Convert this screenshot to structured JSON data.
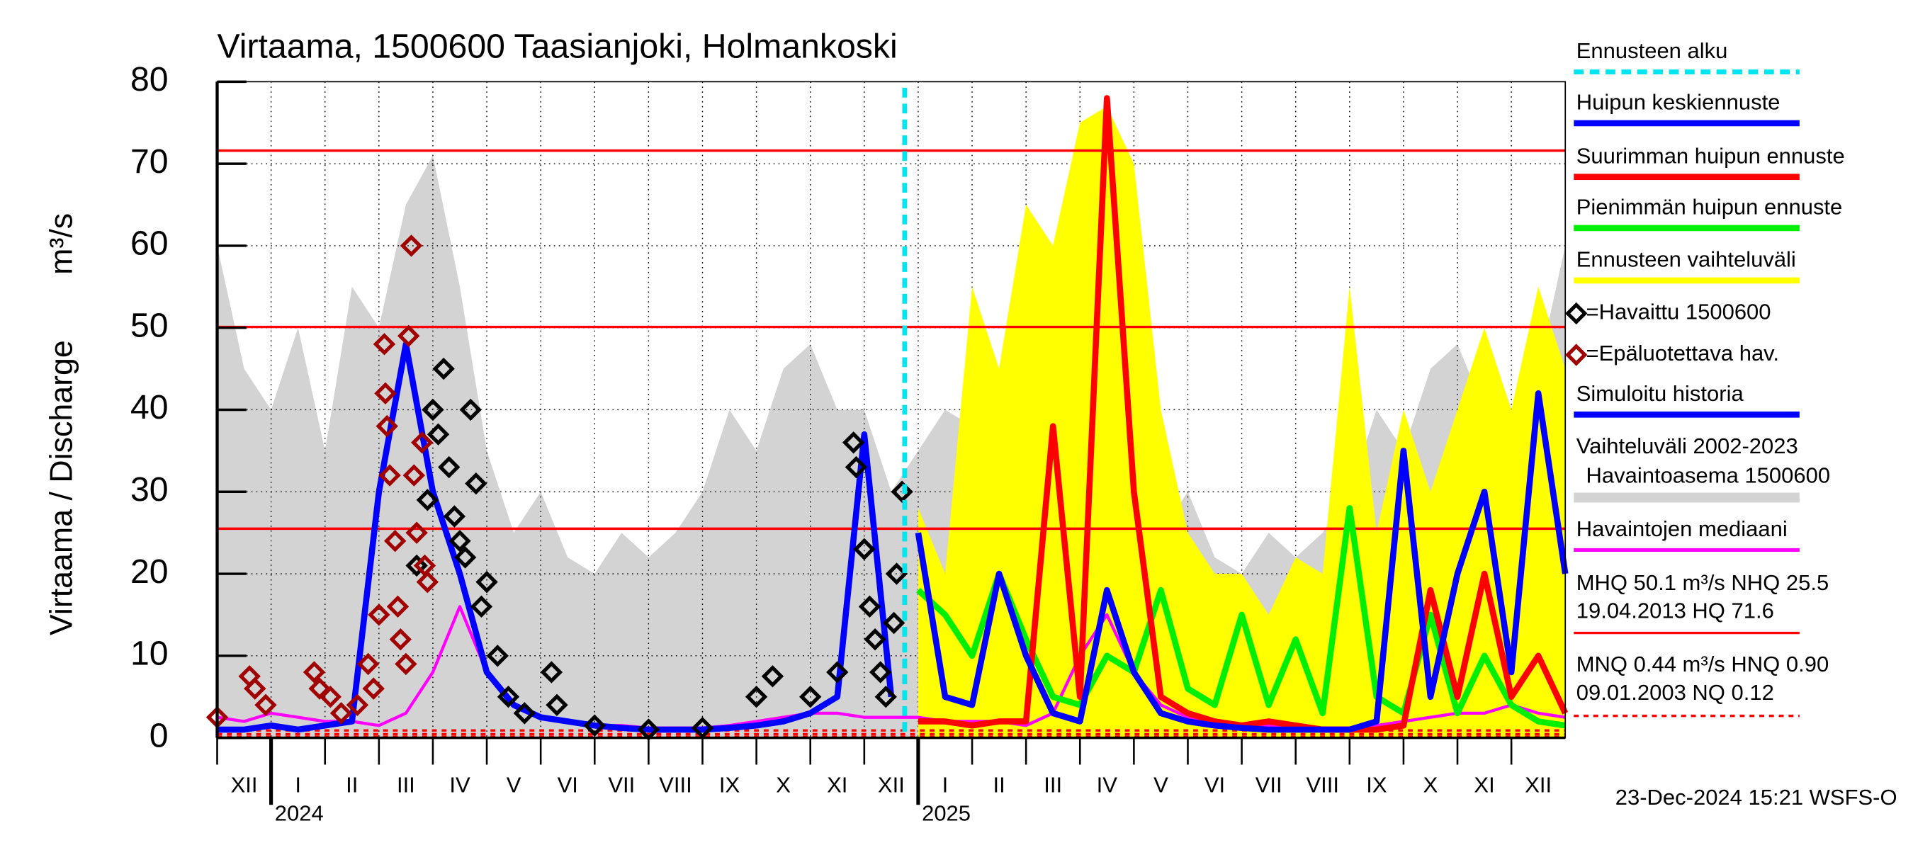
{
  "chart_data": {
    "type": "line",
    "title": "Virtaama, 1500600 Taasianjoki, Holmankoski",
    "ylabel": "Virtaama / Discharge",
    "yunit": "m³/s",
    "footer": "23-Dec-2024 15:21 WSFS-O",
    "ylim": [
      0,
      80
    ],
    "yticks": [
      0,
      10,
      20,
      30,
      40,
      50,
      60,
      70,
      80
    ],
    "xlim": [
      0,
      25
    ],
    "grid": true,
    "month_labels": [
      "XII",
      "I",
      "II",
      "III",
      "IV",
      "V",
      "VI",
      "VII",
      "VIII",
      "IX",
      "X",
      "XI",
      "XII",
      "I",
      "II",
      "III",
      "IV",
      "V",
      "VI",
      "VII",
      "VIII",
      "IX",
      "X",
      "XI",
      "XII"
    ],
    "year_labels": [
      "2024",
      "2025"
    ],
    "forecast_start": 12.75,
    "forecast_start_label": "Ennusteen alku",
    "forecast_start_color": "#00e5ee",
    "x": [
      0,
      0.5,
      1,
      1.5,
      2,
      2.5,
      3,
      3.5,
      4,
      4.5,
      5,
      5.5,
      6,
      6.5,
      7,
      7.5,
      8,
      8.5,
      9,
      9.5,
      10,
      10.5,
      11,
      11.5,
      12,
      12.5,
      13,
      13.5,
      14,
      14.5,
      15,
      15.5,
      16,
      16.5,
      17,
      17.5,
      18,
      18.5,
      19,
      19.5,
      20,
      20.5,
      21,
      21.5,
      22,
      22.5,
      23,
      23.5,
      24,
      24.5,
      25
    ],
    "series": [
      {
        "name": "Vaihteluväli 2002-2023",
        "name_line2": "Havaintoasema 1500600",
        "kind": "area",
        "color": "#d3d3d3",
        "values": [
          60,
          45,
          40,
          50,
          35,
          55,
          50,
          65,
          71,
          55,
          35,
          25,
          30,
          22,
          20,
          25,
          22,
          25,
          30,
          40,
          35,
          45,
          48,
          40,
          40,
          30,
          35,
          40,
          38,
          45,
          50,
          60,
          71,
          55,
          35,
          25,
          30,
          22,
          20,
          25,
          22,
          25,
          30,
          40,
          35,
          45,
          48,
          40,
          40,
          45,
          60
        ]
      },
      {
        "name": "Ennusteen vaihteluväli",
        "kind": "area",
        "color": "#ffff00",
        "values": [
          null,
          null,
          null,
          null,
          null,
          null,
          null,
          null,
          null,
          null,
          null,
          null,
          null,
          null,
          null,
          null,
          null,
          null,
          null,
          null,
          null,
          null,
          null,
          null,
          null,
          null,
          28,
          20,
          55,
          45,
          65,
          60,
          75,
          77,
          70,
          40,
          25,
          20,
          20,
          15,
          22,
          20,
          55,
          25,
          40,
          30,
          40,
          50,
          40,
          55,
          45
        ]
      },
      {
        "name": "Havaintojen mediaani",
        "kind": "line",
        "color": "#ff00ff",
        "values": [
          2.5,
          2,
          3,
          2.5,
          2,
          2,
          1.5,
          3,
          8,
          16,
          8,
          4,
          2.5,
          2,
          1.5,
          1.5,
          1.2,
          1.2,
          1.2,
          1.5,
          2,
          2.5,
          3,
          3,
          2.5,
          2.5,
          2.5,
          2,
          2,
          2,
          1.5,
          3,
          10,
          15,
          8,
          4,
          2.5,
          2,
          1.5,
          1.5,
          1.2,
          1.2,
          1.2,
          1.5,
          2,
          2.5,
          3,
          3,
          4,
          3,
          2.5
        ]
      },
      {
        "name": "Simuloitu historia",
        "kind": "line",
        "color": "#0000ff",
        "values": [
          1,
          1,
          1.5,
          1,
          1.5,
          2,
          30,
          48,
          30,
          20,
          8,
          4,
          2.5,
          2,
          1.5,
          1.2,
          1,
          1,
          1,
          1.2,
          1.5,
          2,
          3,
          5,
          37,
          5,
          null,
          null,
          null,
          null,
          null,
          null,
          null,
          null,
          null,
          null,
          null,
          null,
          null,
          null,
          null,
          null,
          null,
          null,
          null,
          null,
          null,
          null,
          null,
          null,
          null
        ]
      },
      {
        "name": "Pienimmän huipun ennuste",
        "kind": "line",
        "color": "#00ee00",
        "values": [
          null,
          null,
          null,
          null,
          null,
          null,
          null,
          null,
          null,
          null,
          null,
          null,
          null,
          null,
          null,
          null,
          null,
          null,
          null,
          null,
          null,
          null,
          null,
          null,
          null,
          null,
          18,
          15,
          10,
          20,
          12,
          5,
          4,
          10,
          8,
          18,
          6,
          4,
          15,
          4,
          12,
          3,
          28,
          5,
          3,
          15,
          3,
          10,
          4,
          2,
          1.5
        ]
      },
      {
        "name": "Suurimman huipun ennuste",
        "kind": "line",
        "color": "#ff0000",
        "values": [
          null,
          null,
          null,
          null,
          null,
          null,
          null,
          null,
          null,
          null,
          null,
          null,
          null,
          null,
          null,
          null,
          null,
          null,
          null,
          null,
          null,
          null,
          null,
          null,
          null,
          null,
          2,
          2,
          1.5,
          2,
          2,
          38,
          5,
          78,
          30,
          5,
          3,
          2,
          1.5,
          2,
          1.5,
          1,
          1,
          1,
          1.5,
          18,
          5,
          20,
          5,
          10,
          3
        ]
      },
      {
        "name": "Huipun keskiennuste",
        "kind": "line",
        "color": "#0000ff",
        "values": [
          null,
          null,
          null,
          null,
          null,
          null,
          null,
          null,
          null,
          null,
          null,
          null,
          null,
          null,
          null,
          null,
          null,
          null,
          null,
          null,
          null,
          null,
          null,
          null,
          null,
          null,
          25,
          5,
          4,
          20,
          10,
          3,
          2,
          18,
          8,
          3,
          2,
          1.5,
          1.2,
          1,
          1,
          1,
          1,
          2,
          35,
          5,
          20,
          30,
          8,
          42,
          20
        ]
      }
    ],
    "observations": [
      {
        "name": "=Havaittu 1500600",
        "color": "#000000",
        "x": [
          3.7,
          3.9,
          4.0,
          4.1,
          4.2,
          4.3,
          4.4,
          4.5,
          4.6,
          4.7,
          4.8,
          4.9,
          5.0,
          5.2,
          5.4,
          5.7,
          6.2,
          6.3,
          7.0,
          8.0,
          9.0,
          10.0,
          10.3,
          11.0,
          11.5,
          11.8,
          11.85,
          12.0,
          12.1,
          12.2,
          12.3,
          12.4,
          12.55,
          12.6,
          12.7
        ],
        "values": [
          21,
          29,
          40,
          37,
          45,
          33,
          27,
          24,
          22,
          40,
          31,
          16,
          19,
          10,
          5,
          3,
          8,
          4,
          1.5,
          1,
          1.2,
          5,
          7.5,
          5,
          8,
          36,
          33,
          23,
          16,
          12,
          8,
          5,
          14,
          20,
          30
        ]
      },
      {
        "name": "=Epäluotettava hav.",
        "color": "#a00000",
        "x": [
          0,
          0.6,
          0.7,
          0.9,
          1.8,
          1.9,
          2.1,
          2.3,
          2.6,
          2.8,
          2.9,
          3.0,
          3.1,
          3.12,
          3.15,
          3.2,
          3.3,
          3.35,
          3.4,
          3.5,
          3.55,
          3.6,
          3.65,
          3.7,
          3.8,
          3.85,
          3.9
        ],
        "values": [
          2.5,
          7.5,
          6,
          4,
          8,
          6,
          5,
          3,
          4,
          9,
          6,
          15,
          48,
          42,
          38,
          32,
          24,
          16,
          12,
          9,
          49,
          60,
          32,
          25,
          36,
          21,
          19
        ]
      }
    ],
    "reference_lines": [
      {
        "value": 71.6,
        "color": "#ff0000",
        "style": "solid"
      },
      {
        "value": 50.1,
        "color": "#ff0000",
        "style": "solid"
      },
      {
        "value": 25.5,
        "color": "#ff0000",
        "style": "solid"
      },
      {
        "value": 0.9,
        "color": "#ff0000",
        "style": "dashed"
      },
      {
        "value": 0.44,
        "color": "#ff0000",
        "style": "dashed"
      },
      {
        "value": 0.12,
        "color": "#ff0000",
        "style": "dashed"
      }
    ],
    "notes": [
      "MHQ 50.1 m³/s NHQ 25.5",
      "19.04.2013 HQ 71.6",
      "MNQ 0.44 m³/s HNQ 0.90",
      "09.01.2003 NQ 0.12"
    ]
  }
}
